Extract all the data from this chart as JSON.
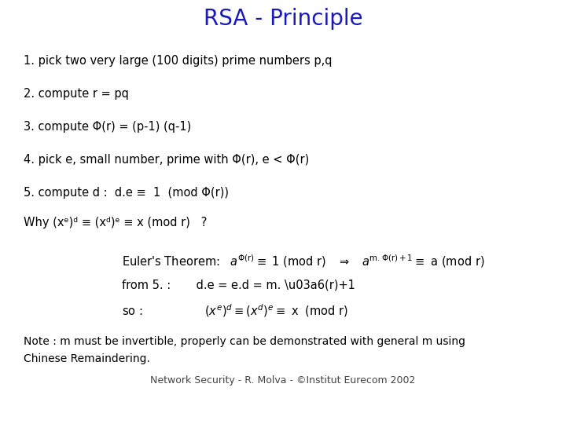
{
  "title": "RSA - Principle",
  "title_color": "#1a1ab8",
  "title_fontsize": 20,
  "bg_color": "#ffffff",
  "text_color": "#000000",
  "body_fontsize": 10.5,
  "note_fontsize": 10,
  "footer_fontsize": 9,
  "footer": "Network Security - R. Molva - ©Institut Eurecom 2002",
  "line1": "1. pick two very large (100 digits) prime numbers p,q",
  "line2": "2. compute r = pq",
  "line4": "4. pick e, small number, prime with Φ(r), e < Φ(r)",
  "line5": "5. compute d :  d.e ≡  1  (mod Φ(r))",
  "note1": "Note : m must be invertible, properly can be demonstrated with general m using",
  "note2": "Chinese Remaindering."
}
